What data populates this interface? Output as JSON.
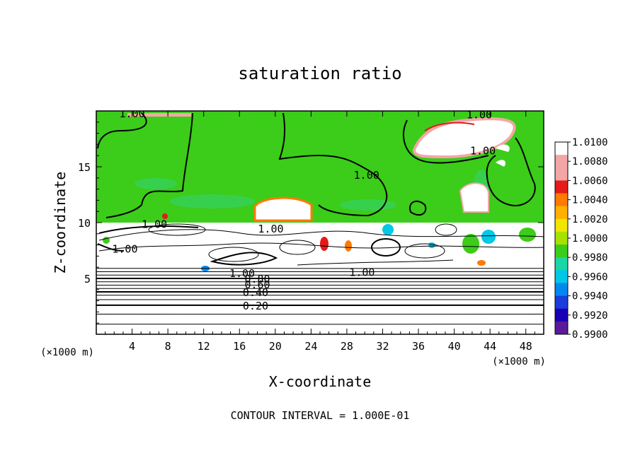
{
  "chart_data": {
    "type": "heatmap",
    "title": "saturation ratio",
    "xlabel": "X-coordinate",
    "ylabel": "Z-coordinate",
    "x_unit": "(×1000 m)",
    "z_unit": "(×1000 m)",
    "x_ticks": [
      4,
      8,
      12,
      16,
      20,
      24,
      28,
      32,
      36,
      40,
      44,
      48
    ],
    "z_ticks": [
      5,
      10,
      15
    ],
    "xlim": [
      0,
      50
    ],
    "zlim": [
      0,
      20
    ],
    "colorbar": {
      "labels": [
        "1.0100",
        "1.0080",
        "1.0060",
        "1.0040",
        "1.0020",
        "1.0000",
        "0.9980",
        "0.9960",
        "0.9940",
        "0.9920",
        "0.9900"
      ],
      "colors": [
        "#ffffff",
        "#f4a6a6",
        "#f4a6a6",
        "#e51a1a",
        "#ff7a00",
        "#ffb000",
        "#f2e500",
        "#a8e000",
        "#3ccc1a",
        "#1ad6a6",
        "#00c8e6",
        "#0088f0",
        "#1a3cdc",
        "#1a00b4",
        "#5a1a9a"
      ]
    },
    "contour_labels": [
      {
        "text": "1.00",
        "x": 4.0,
        "z": 19.8
      },
      {
        "text": "1.00",
        "x": 42.8,
        "z": 19.7
      },
      {
        "text": "1.00",
        "x": 43.2,
        "z": 16.5
      },
      {
        "text": "1.00",
        "x": 30.2,
        "z": 14.3
      },
      {
        "text": "1.00",
        "x": 6.5,
        "z": 9.9
      },
      {
        "text": "1.00",
        "x": 19.5,
        "z": 9.5
      },
      {
        "text": "1.00",
        "x": 3.2,
        "z": 7.7
      },
      {
        "text": "1.00",
        "x": 29.7,
        "z": 5.6
      },
      {
        "text": "1.00",
        "x": 16.3,
        "z": 5.5
      },
      {
        "text": "0.80",
        "x": 18.0,
        "z": 5.0
      },
      {
        "text": "0.60",
        "x": 18.0,
        "z": 4.5
      },
      {
        "text": "0.40",
        "x": 17.8,
        "z": 3.8
      },
      {
        "text": "0.20",
        "x": 17.8,
        "z": 2.6
      }
    ],
    "footer": "CONTOUR INTERVAL = 1.000E-01"
  }
}
